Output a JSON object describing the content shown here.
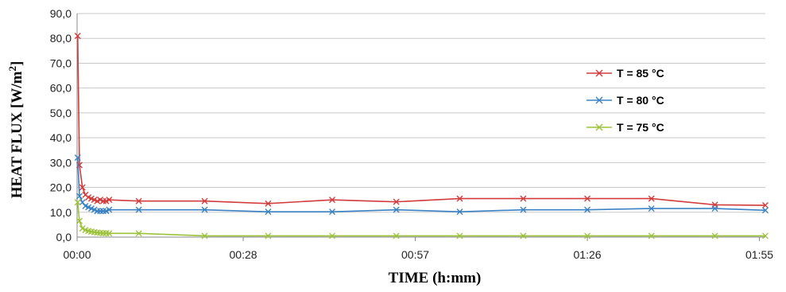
{
  "chart_data": {
    "type": "line",
    "title": "",
    "xlabel": "TIME (h:mm)",
    "ylabel_main": "HEAT FLUX [W/m",
    "ylabel_sup": "2",
    "ylabel_close": "]",
    "xlim_minutes": [
      0,
      116
    ],
    "ylim": [
      0,
      90
    ],
    "grid": true,
    "legend_position": "right",
    "x_ticks": [
      {
        "minutes": 0,
        "label": "00:00"
      },
      {
        "minutes": 28,
        "label": "00:28"
      },
      {
        "minutes": 57,
        "label": "00:57"
      },
      {
        "minutes": 86,
        "label": "01:26"
      },
      {
        "minutes": 115,
        "label": "01:55"
      }
    ],
    "y_ticks": [
      {
        "value": 0,
        "label": "0,0"
      },
      {
        "value": 10,
        "label": "10,0"
      },
      {
        "value": 20,
        "label": "20,0"
      },
      {
        "value": 30,
        "label": "30,0"
      },
      {
        "value": 40,
        "label": "40,0"
      },
      {
        "value": 50,
        "label": "50,0"
      },
      {
        "value": 60,
        "label": "60,0"
      },
      {
        "value": 70,
        "label": "70,0"
      },
      {
        "value": 80,
        "label": "80,0"
      },
      {
        "value": 90,
        "label": "90,0"
      }
    ],
    "series": [
      {
        "name": "T = 85 °C",
        "color": "#d23c3c",
        "marker": "x",
        "points": [
          [
            0.1,
            81
          ],
          [
            0.4,
            29
          ],
          [
            0.9,
            20
          ],
          [
            1.4,
            17
          ],
          [
            1.9,
            16
          ],
          [
            2.4,
            15.5
          ],
          [
            2.9,
            15
          ],
          [
            3.4,
            14.5
          ],
          [
            3.9,
            15
          ],
          [
            4.4,
            14.5
          ],
          [
            4.9,
            14.5
          ],
          [
            5.4,
            15
          ],
          [
            10.4,
            14.5
          ],
          [
            21.5,
            14.5
          ],
          [
            32.2,
            13.5
          ],
          [
            43,
            15
          ],
          [
            53.8,
            14.2
          ],
          [
            64.5,
            15.5
          ],
          [
            75.2,
            15.5
          ],
          [
            86,
            15.5
          ],
          [
            96.8,
            15.5
          ],
          [
            107.5,
            13
          ],
          [
            116,
            12.8
          ]
        ]
      },
      {
        "name": "T = 80 °C",
        "color": "#3b82c4",
        "marker": "x",
        "points": [
          [
            0.1,
            32
          ],
          [
            0.4,
            16.5
          ],
          [
            0.9,
            14
          ],
          [
            1.4,
            12.5
          ],
          [
            1.9,
            12
          ],
          [
            2.4,
            11.5
          ],
          [
            2.9,
            11
          ],
          [
            3.4,
            10.5
          ],
          [
            3.9,
            10.5
          ],
          [
            4.4,
            10.5
          ],
          [
            4.9,
            10.5
          ],
          [
            5.4,
            11
          ],
          [
            10.4,
            11
          ],
          [
            21.5,
            11
          ],
          [
            32.2,
            10.2
          ],
          [
            43,
            10.2
          ],
          [
            53.8,
            11
          ],
          [
            64.5,
            10.2
          ],
          [
            75.2,
            11
          ],
          [
            86,
            11
          ],
          [
            96.8,
            11.5
          ],
          [
            107.5,
            11.5
          ],
          [
            116,
            10.8
          ]
        ]
      },
      {
        "name": "T = 75 °C",
        "color": "#9cc23a",
        "marker": "x",
        "points": [
          [
            0.1,
            14
          ],
          [
            0.4,
            6.5
          ],
          [
            0.9,
            3.5
          ],
          [
            1.4,
            2.8
          ],
          [
            1.9,
            2.5
          ],
          [
            2.4,
            2.2
          ],
          [
            2.9,
            2
          ],
          [
            3.4,
            1.8
          ],
          [
            3.9,
            1.7
          ],
          [
            4.4,
            1.6
          ],
          [
            4.9,
            1.6
          ],
          [
            5.4,
            1.5
          ],
          [
            10.4,
            1.5
          ],
          [
            21.5,
            0.5
          ],
          [
            32.2,
            0.5
          ],
          [
            43,
            0.5
          ],
          [
            53.8,
            0.5
          ],
          [
            64.5,
            0.5
          ],
          [
            75.2,
            0.5
          ],
          [
            86,
            0.5
          ],
          [
            96.8,
            0.5
          ],
          [
            107.5,
            0.5
          ],
          [
            116,
            0.5
          ]
        ]
      }
    ]
  }
}
